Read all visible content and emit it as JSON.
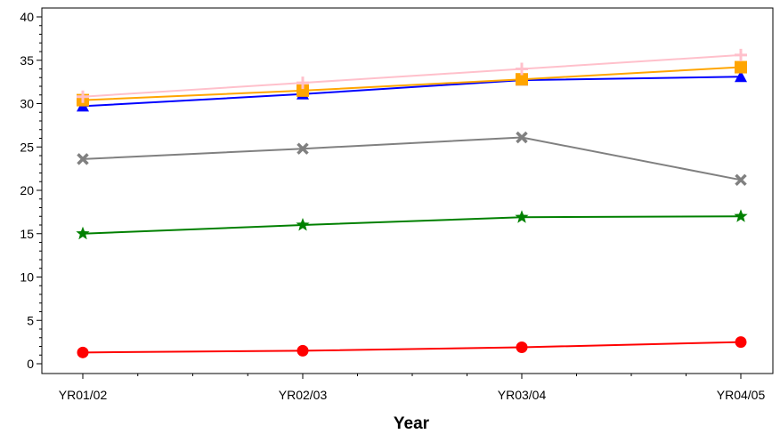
{
  "chart_data": {
    "type": "line",
    "title": "",
    "xlabel": "Year",
    "ylabel": "",
    "categories": [
      "YR01/02",
      "YR02/03",
      "YR03/04",
      "YR04/05"
    ],
    "ylim": [
      0,
      40
    ],
    "yticks": [
      0,
      5,
      10,
      15,
      20,
      25,
      30,
      35,
      40
    ],
    "grid": false,
    "legend": "none",
    "series": [
      {
        "color": "#FFC0CB",
        "marker": "plus",
        "values": [
          30.8,
          32.4,
          34.0,
          35.6
        ]
      },
      {
        "color": "#FFA500",
        "marker": "square",
        "values": [
          30.4,
          31.5,
          32.8,
          34.2
        ]
      },
      {
        "color": "#0000FF",
        "marker": "triangle",
        "values": [
          29.7,
          31.1,
          32.7,
          33.1
        ]
      },
      {
        "color": "#808080",
        "marker": "x",
        "values": [
          23.6,
          24.8,
          26.1,
          21.2
        ]
      },
      {
        "color": "#008000",
        "marker": "star",
        "values": [
          15.0,
          16.0,
          16.9,
          17.0
        ]
      },
      {
        "color": "#FF0000",
        "marker": "circle",
        "values": [
          1.3,
          1.5,
          1.9,
          2.5
        ]
      }
    ]
  }
}
